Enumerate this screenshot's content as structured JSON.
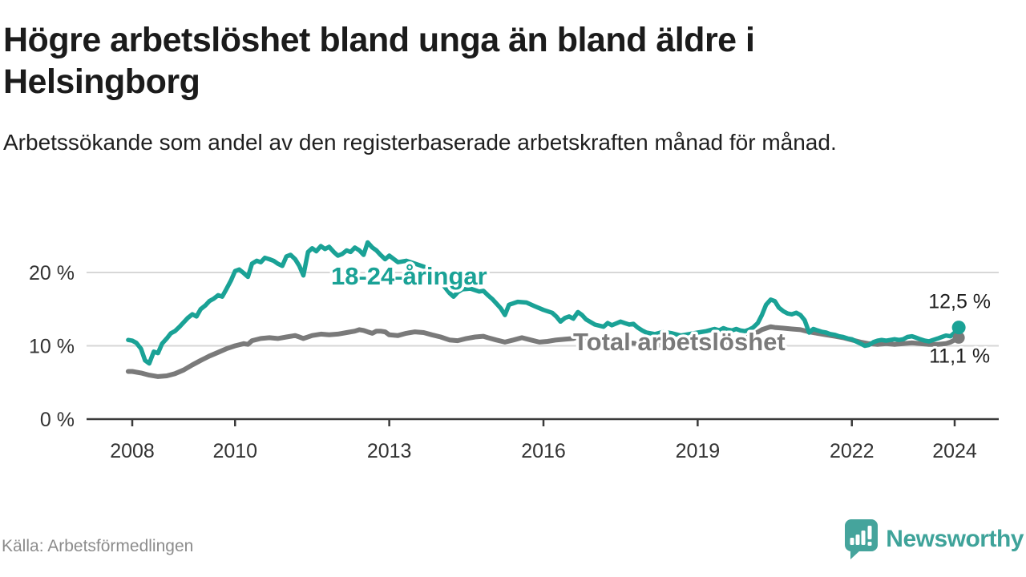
{
  "header": {
    "title": "Högre arbetslöshet bland unga än bland äldre i Helsingborg",
    "subtitle": "Arbetssökande som andel av den registerbaserade arbetskraften månad för månad."
  },
  "footer": {
    "source": "Källa: Arbetsförmedlingen",
    "brand_name": "Newsworthy",
    "brand_icon": "speech-bubble-bar-chart-icon"
  },
  "colors": {
    "young_line": "#1aa296",
    "total_line": "#7a7a7a",
    "grid": "#d7d7d7",
    "axis": "#3a3a3a",
    "axis_label": "#333333",
    "end_label_text": "#1d1d1d",
    "halo": "#ffffff",
    "brand_teal": "#3fa39a"
  },
  "chart_data": {
    "type": "line",
    "title": "",
    "xlabel": "",
    "ylabel": "",
    "grid": "horizontal",
    "x_axis": {
      "range": [
        2007.9,
        2024.45
      ],
      "ticks": [
        {
          "value": 2008,
          "label": "2008"
        },
        {
          "value": 2010,
          "label": "2010"
        },
        {
          "value": 2013,
          "label": "2013"
        },
        {
          "value": 2016,
          "label": "2016"
        },
        {
          "value": 2019,
          "label": "2019"
        },
        {
          "value": 2022,
          "label": "2022"
        },
        {
          "value": 2024,
          "label": "2024"
        }
      ]
    },
    "y_axis": {
      "range": [
        0,
        26
      ],
      "unit": "percent",
      "ticks": [
        {
          "value": 0,
          "label": "0 %"
        },
        {
          "value": 10,
          "label": "10 %"
        },
        {
          "value": 20,
          "label": "20 %"
        }
      ]
    },
    "series": [
      {
        "id": "young",
        "name": "18-24-åringar",
        "color": "#1aa296",
        "end_label": "12,5 %",
        "end_value": 12.5,
        "points": [
          [
            2007.92,
            10.8
          ],
          [
            2008.0,
            10.7
          ],
          [
            2008.08,
            10.4
          ],
          [
            2008.17,
            9.6
          ],
          [
            2008.25,
            8.0
          ],
          [
            2008.33,
            7.6
          ],
          [
            2008.42,
            9.2
          ],
          [
            2008.5,
            9.0
          ],
          [
            2008.58,
            10.3
          ],
          [
            2008.67,
            11.0
          ],
          [
            2008.75,
            11.7
          ],
          [
            2008.83,
            12.0
          ],
          [
            2008.92,
            12.6
          ],
          [
            2009.0,
            13.2
          ],
          [
            2009.08,
            13.8
          ],
          [
            2009.17,
            14.3
          ],
          [
            2009.25,
            14.0
          ],
          [
            2009.33,
            15.0
          ],
          [
            2009.42,
            15.5
          ],
          [
            2009.5,
            16.1
          ],
          [
            2009.58,
            16.4
          ],
          [
            2009.67,
            16.9
          ],
          [
            2009.75,
            16.7
          ],
          [
            2009.83,
            17.7
          ],
          [
            2009.92,
            18.9
          ],
          [
            2010.0,
            20.2
          ],
          [
            2010.08,
            20.4
          ],
          [
            2010.17,
            19.9
          ],
          [
            2010.25,
            19.4
          ],
          [
            2010.33,
            21.2
          ],
          [
            2010.42,
            21.6
          ],
          [
            2010.5,
            21.4
          ],
          [
            2010.58,
            22.0
          ],
          [
            2010.67,
            21.8
          ],
          [
            2010.75,
            21.6
          ],
          [
            2010.83,
            21.2
          ],
          [
            2010.92,
            20.9
          ],
          [
            2011.0,
            22.2
          ],
          [
            2011.08,
            22.4
          ],
          [
            2011.17,
            21.8
          ],
          [
            2011.25,
            20.9
          ],
          [
            2011.33,
            19.6
          ],
          [
            2011.42,
            22.8
          ],
          [
            2011.5,
            23.3
          ],
          [
            2011.58,
            22.9
          ],
          [
            2011.67,
            23.6
          ],
          [
            2011.75,
            23.2
          ],
          [
            2011.83,
            23.5
          ],
          [
            2011.92,
            22.8
          ],
          [
            2012.0,
            22.3
          ],
          [
            2012.08,
            22.5
          ],
          [
            2012.17,
            23.0
          ],
          [
            2012.25,
            22.8
          ],
          [
            2012.33,
            23.4
          ],
          [
            2012.42,
            23.0
          ],
          [
            2012.5,
            22.4
          ],
          [
            2012.58,
            24.1
          ],
          [
            2012.67,
            23.4
          ],
          [
            2012.75,
            23.0
          ],
          [
            2012.83,
            22.4
          ],
          [
            2012.92,
            21.8
          ],
          [
            2013.0,
            22.3
          ],
          [
            2013.17,
            21.4
          ],
          [
            2013.33,
            21.6
          ],
          [
            2013.5,
            21.2
          ],
          [
            2013.67,
            20.8
          ],
          [
            2013.83,
            20.2
          ],
          [
            2014.0,
            19.0
          ],
          [
            2014.08,
            18.0
          ],
          [
            2014.17,
            17.2
          ],
          [
            2014.25,
            16.7
          ],
          [
            2014.33,
            17.3
          ],
          [
            2014.42,
            17.7
          ],
          [
            2014.58,
            17.8
          ],
          [
            2014.75,
            17.4
          ],
          [
            2014.83,
            17.5
          ],
          [
            2014.92,
            16.9
          ],
          [
            2015.0,
            16.4
          ],
          [
            2015.08,
            15.8
          ],
          [
            2015.17,
            15.1
          ],
          [
            2015.25,
            14.2
          ],
          [
            2015.33,
            15.6
          ],
          [
            2015.5,
            16.0
          ],
          [
            2015.67,
            15.9
          ],
          [
            2015.83,
            15.4
          ],
          [
            2016.0,
            14.9
          ],
          [
            2016.17,
            14.5
          ],
          [
            2016.25,
            14.0
          ],
          [
            2016.33,
            13.3
          ],
          [
            2016.42,
            13.8
          ],
          [
            2016.5,
            14.0
          ],
          [
            2016.58,
            13.7
          ],
          [
            2016.67,
            14.6
          ],
          [
            2016.75,
            14.2
          ],
          [
            2016.83,
            13.6
          ],
          [
            2017.0,
            12.9
          ],
          [
            2017.17,
            12.6
          ],
          [
            2017.25,
            13.1
          ],
          [
            2017.33,
            12.8
          ],
          [
            2017.5,
            13.3
          ],
          [
            2017.58,
            13.1
          ],
          [
            2017.67,
            12.9
          ],
          [
            2017.75,
            13.0
          ],
          [
            2017.83,
            12.5
          ],
          [
            2017.92,
            12.1
          ],
          [
            2018.0,
            11.8
          ],
          [
            2018.17,
            11.6
          ],
          [
            2018.33,
            11.9
          ],
          [
            2018.5,
            11.7
          ],
          [
            2018.67,
            11.4
          ],
          [
            2018.83,
            11.6
          ],
          [
            2019.0,
            11.8
          ],
          [
            2019.17,
            12.0
          ],
          [
            2019.33,
            12.3
          ],
          [
            2019.42,
            12.1
          ],
          [
            2019.5,
            12.4
          ],
          [
            2019.58,
            12.2
          ],
          [
            2019.67,
            12.1
          ],
          [
            2019.75,
            12.3
          ],
          [
            2019.83,
            12.1
          ],
          [
            2019.92,
            12.0
          ],
          [
            2020.0,
            12.2
          ],
          [
            2020.08,
            12.5
          ],
          [
            2020.17,
            13.1
          ],
          [
            2020.25,
            14.2
          ],
          [
            2020.33,
            15.6
          ],
          [
            2020.42,
            16.3
          ],
          [
            2020.5,
            16.1
          ],
          [
            2020.58,
            15.2
          ],
          [
            2020.67,
            14.7
          ],
          [
            2020.75,
            14.4
          ],
          [
            2020.83,
            14.3
          ],
          [
            2020.92,
            14.5
          ],
          [
            2021.0,
            14.2
          ],
          [
            2021.08,
            13.5
          ],
          [
            2021.17,
            11.8
          ],
          [
            2021.25,
            12.3
          ],
          [
            2021.33,
            12.1
          ],
          [
            2021.42,
            11.9
          ],
          [
            2021.5,
            11.8
          ],
          [
            2021.58,
            11.6
          ],
          [
            2021.67,
            11.5
          ],
          [
            2021.75,
            11.3
          ],
          [
            2021.83,
            11.2
          ],
          [
            2021.92,
            11.0
          ],
          [
            2022.0,
            10.9
          ],
          [
            2022.08,
            10.6
          ],
          [
            2022.17,
            10.3
          ],
          [
            2022.25,
            10.0
          ],
          [
            2022.33,
            10.1
          ],
          [
            2022.42,
            10.5
          ],
          [
            2022.5,
            10.7
          ],
          [
            2022.58,
            10.8
          ],
          [
            2022.67,
            10.7
          ],
          [
            2022.75,
            10.8
          ],
          [
            2022.83,
            10.9
          ],
          [
            2022.92,
            10.8
          ],
          [
            2023.0,
            10.9
          ],
          [
            2023.08,
            11.2
          ],
          [
            2023.17,
            11.3
          ],
          [
            2023.25,
            11.1
          ],
          [
            2023.33,
            10.9
          ],
          [
            2023.42,
            10.7
          ],
          [
            2023.5,
            10.6
          ],
          [
            2023.58,
            10.8
          ],
          [
            2023.67,
            11.0
          ],
          [
            2023.75,
            11.2
          ],
          [
            2023.83,
            11.4
          ],
          [
            2023.92,
            11.3
          ],
          [
            2024.0,
            11.8
          ],
          [
            2024.08,
            12.5
          ]
        ]
      },
      {
        "id": "total",
        "name": "Total arbetslöshet",
        "color": "#7a7a7a",
        "end_label": "11,1 %",
        "end_value": 11.1,
        "points": [
          [
            2007.92,
            6.5
          ],
          [
            2008.0,
            6.5
          ],
          [
            2008.17,
            6.3
          ],
          [
            2008.33,
            6.0
          ],
          [
            2008.5,
            5.8
          ],
          [
            2008.67,
            5.9
          ],
          [
            2008.83,
            6.2
          ],
          [
            2009.0,
            6.7
          ],
          [
            2009.17,
            7.4
          ],
          [
            2009.33,
            8.0
          ],
          [
            2009.5,
            8.6
          ],
          [
            2009.67,
            9.1
          ],
          [
            2009.83,
            9.6
          ],
          [
            2010.0,
            10.0
          ],
          [
            2010.17,
            10.3
          ],
          [
            2010.25,
            10.2
          ],
          [
            2010.33,
            10.7
          ],
          [
            2010.5,
            11.0
          ],
          [
            2010.67,
            11.1
          ],
          [
            2010.83,
            11.0
          ],
          [
            2011.0,
            11.2
          ],
          [
            2011.17,
            11.4
          ],
          [
            2011.25,
            11.2
          ],
          [
            2011.33,
            11.0
          ],
          [
            2011.5,
            11.4
          ],
          [
            2011.67,
            11.6
          ],
          [
            2011.83,
            11.5
          ],
          [
            2012.0,
            11.6
          ],
          [
            2012.17,
            11.8
          ],
          [
            2012.33,
            12.0
          ],
          [
            2012.42,
            12.2
          ],
          [
            2012.5,
            12.1
          ],
          [
            2012.58,
            11.9
          ],
          [
            2012.67,
            11.7
          ],
          [
            2012.75,
            12.0
          ],
          [
            2012.83,
            12.0
          ],
          [
            2012.92,
            11.9
          ],
          [
            2013.0,
            11.5
          ],
          [
            2013.17,
            11.4
          ],
          [
            2013.33,
            11.7
          ],
          [
            2013.5,
            11.9
          ],
          [
            2013.67,
            11.8
          ],
          [
            2013.83,
            11.5
          ],
          [
            2014.0,
            11.2
          ],
          [
            2014.17,
            10.8
          ],
          [
            2014.33,
            10.7
          ],
          [
            2014.5,
            11.0
          ],
          [
            2014.67,
            11.2
          ],
          [
            2014.83,
            11.3
          ],
          [
            2014.92,
            11.1
          ],
          [
            2015.08,
            10.8
          ],
          [
            2015.25,
            10.5
          ],
          [
            2015.42,
            10.8
          ],
          [
            2015.58,
            11.1
          ],
          [
            2015.75,
            10.8
          ],
          [
            2015.92,
            10.5
          ],
          [
            2016.08,
            10.6
          ],
          [
            2016.25,
            10.8
          ],
          [
            2016.42,
            10.9
          ],
          [
            2016.58,
            11.0
          ],
          [
            2016.67,
            11.2
          ],
          [
            2016.83,
            11.0
          ],
          [
            2017.0,
            10.8
          ],
          [
            2017.17,
            10.7
          ],
          [
            2017.33,
            10.6
          ],
          [
            2017.5,
            10.5
          ],
          [
            2017.67,
            10.4
          ],
          [
            2017.83,
            10.3
          ],
          [
            2018.0,
            10.2
          ],
          [
            2018.25,
            10.1
          ],
          [
            2018.5,
            10.2
          ],
          [
            2018.75,
            10.3
          ],
          [
            2019.0,
            10.4
          ],
          [
            2019.25,
            10.5
          ],
          [
            2019.5,
            10.5
          ],
          [
            2019.75,
            10.7
          ],
          [
            2019.92,
            11.0
          ],
          [
            2020.08,
            11.5
          ],
          [
            2020.25,
            12.2
          ],
          [
            2020.42,
            12.6
          ],
          [
            2020.5,
            12.5
          ],
          [
            2020.67,
            12.4
          ],
          [
            2020.83,
            12.3
          ],
          [
            2021.0,
            12.2
          ],
          [
            2021.17,
            11.9
          ],
          [
            2021.33,
            11.7
          ],
          [
            2021.5,
            11.5
          ],
          [
            2021.67,
            11.3
          ],
          [
            2021.83,
            11.1
          ],
          [
            2022.0,
            10.8
          ],
          [
            2022.17,
            10.5
          ],
          [
            2022.33,
            10.3
          ],
          [
            2022.5,
            10.2
          ],
          [
            2022.67,
            10.3
          ],
          [
            2022.83,
            10.2
          ],
          [
            2023.0,
            10.3
          ],
          [
            2023.17,
            10.4
          ],
          [
            2023.33,
            10.3
          ],
          [
            2023.5,
            10.2
          ],
          [
            2023.67,
            10.2
          ],
          [
            2023.83,
            10.3
          ],
          [
            2023.92,
            10.5
          ],
          [
            2024.0,
            10.8
          ],
          [
            2024.08,
            11.1
          ]
        ]
      }
    ],
    "legend_position": "inline-labels-on-lines"
  }
}
